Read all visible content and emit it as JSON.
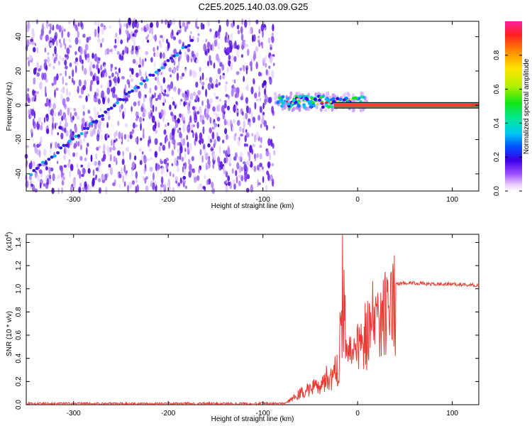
{
  "title": "C2E5.2025.140.03.09.G25",
  "chart_data": [
    {
      "type": "heatmap",
      "xlabel": "Height of straight line (km)",
      "ylabel": "Frequency (Hz)",
      "xlim": [
        -350,
        128
      ],
      "ylim": [
        -50,
        49
      ],
      "xticks": [
        -300,
        -200,
        -100,
        0,
        100
      ],
      "yticks": [
        -40,
        -20,
        0,
        20,
        40
      ],
      "colorbar": {
        "label": "Normalized spectral amplitude",
        "range": [
          0,
          1
        ],
        "ticks": [
          "0.0",
          "0.2",
          "0.4",
          "0.6",
          "0.8"
        ]
      },
      "features": {
        "noise_region_x": [
          -350,
          -88
        ],
        "diagonal_trace": {
          "x": [
            -345,
            -175
          ],
          "y": [
            -40,
            37
          ]
        },
        "turbulent_cluster_x": [
          -88,
          10
        ],
        "flat_line": {
          "x": [
            -25,
            128
          ],
          "y": 0
        }
      }
    },
    {
      "type": "line",
      "xlabel": "Height of straight line (km)",
      "ylabel": "SNR (10 * v/v)",
      "multiplier": "(x10^4)",
      "xlim": [
        -350,
        128
      ],
      "ylim": [
        0,
        1.47
      ],
      "xticks": [
        -300,
        -200,
        -100,
        0,
        100
      ],
      "yticks": [
        "0.0",
        "0.2",
        "0.4",
        "0.6",
        "0.8",
        "1.0",
        "1.2",
        "1.4"
      ],
      "series": [
        {
          "color": "#e83a32",
          "x": [
            -350,
            -120,
            -78,
            -70,
            -60,
            -50,
            -40,
            -30,
            -20,
            -16,
            -10,
            0,
            10,
            20,
            30,
            40,
            50,
            60,
            80,
            100,
            128
          ],
          "y": [
            0.01,
            0.01,
            0.01,
            0.05,
            0.12,
            0.16,
            0.22,
            0.28,
            0.35,
            1.47,
            0.45,
            0.6,
            0.75,
            0.88,
            0.98,
            1.04,
            1.05,
            1.05,
            1.04,
            1.04,
            1.03
          ]
        }
      ]
    }
  ]
}
